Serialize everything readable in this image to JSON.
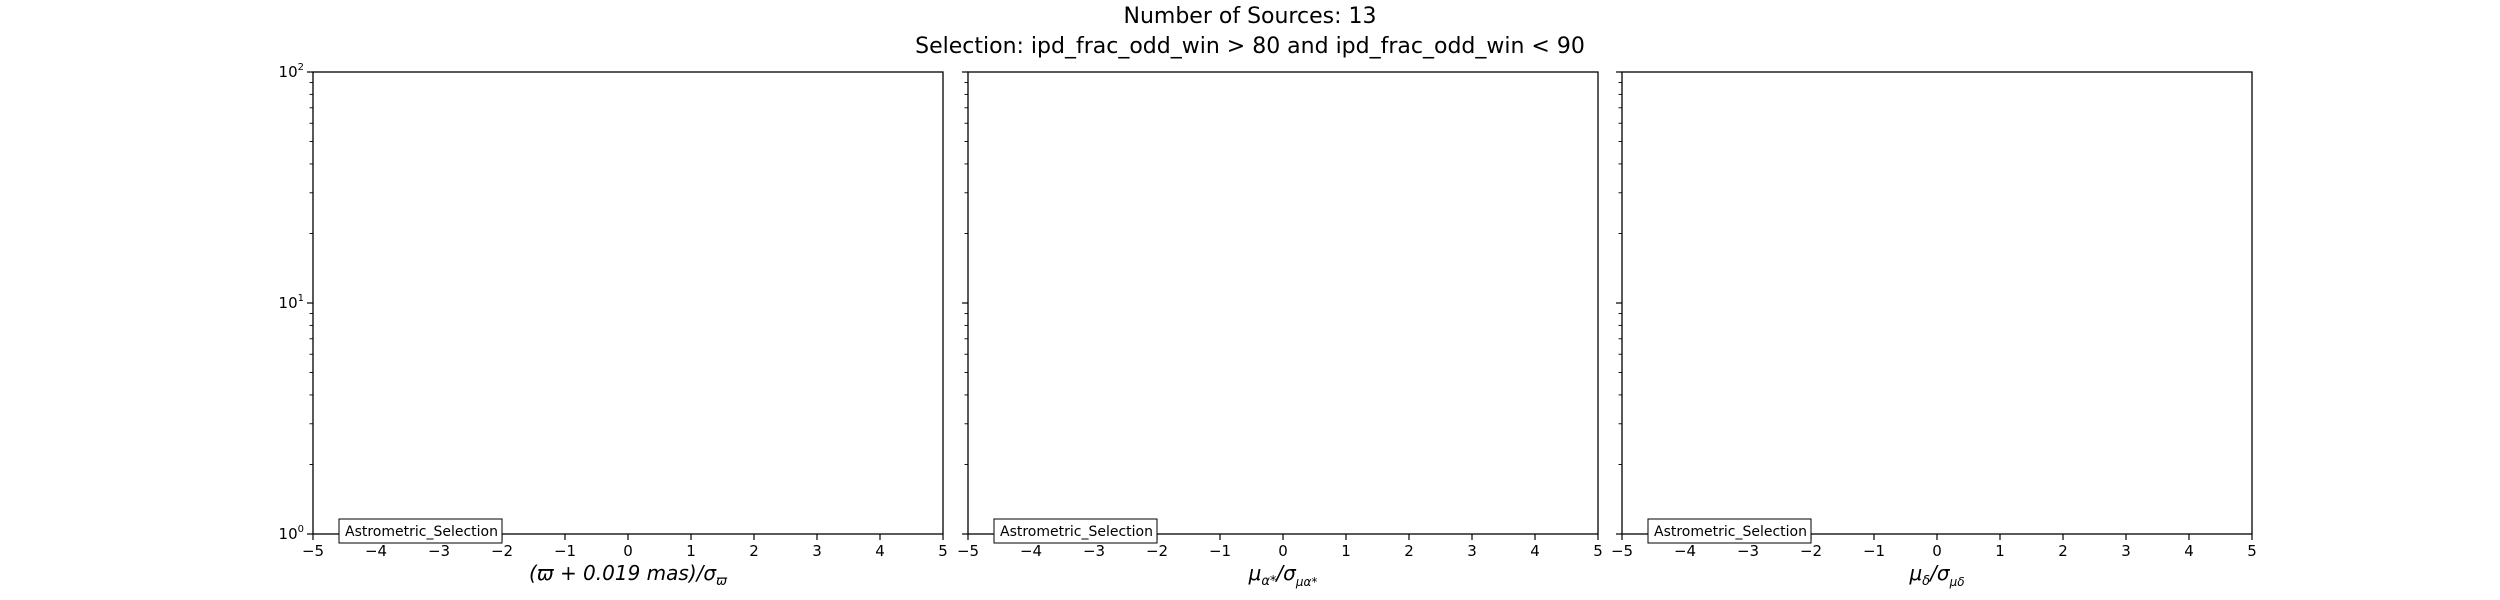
{
  "figure": {
    "title": "Number of Sources: 13",
    "subtitle": "Selection: ipd_frac_odd_win > 80 and ipd_frac_odd_win < 90"
  },
  "chart_data": [
    {
      "type": "histogram",
      "xlabel": "(ϖ + 0.019 mas)/σϖ",
      "xlabel_parts": {
        "main": "(ϖ + 0.019 ",
        "unit": "mas",
        "tail": ")/σ",
        "sub": "ϖ"
      },
      "ylabel": "",
      "xlim": [
        -5,
        5
      ],
      "ylim": [
        1,
        100
      ],
      "yscale": "log",
      "xticks": [
        -5,
        -4,
        -3,
        -2,
        -1,
        0,
        1,
        2,
        3,
        4,
        5
      ],
      "yticks": [
        {
          "base": "10",
          "exp": "0",
          "value": 1
        },
        {
          "base": "10",
          "exp": "1",
          "value": 10
        },
        {
          "base": "10",
          "exp": "2",
          "value": 100
        }
      ],
      "show_yticklabels": true,
      "legend": {
        "label": "Astrometric_Selection",
        "placement": "lower-left"
      },
      "series": [
        {
          "name": "Astrometric_Selection",
          "values": []
        }
      ]
    },
    {
      "type": "histogram",
      "xlabel": "μα*/σμα*",
      "xlabel_parts": {
        "main": "μ",
        "sub1": "α*",
        "tail": "/σ",
        "sub": "μα*"
      },
      "ylabel": "",
      "xlim": [
        -5,
        5
      ],
      "ylim": [
        1,
        100
      ],
      "yscale": "log",
      "xticks": [
        -5,
        -4,
        -3,
        -2,
        -1,
        0,
        1,
        2,
        3,
        4,
        5
      ],
      "yticks": [
        {
          "base": "10",
          "exp": "0",
          "value": 1
        },
        {
          "base": "10",
          "exp": "1",
          "value": 10
        },
        {
          "base": "10",
          "exp": "2",
          "value": 100
        }
      ],
      "show_yticklabels": false,
      "legend": {
        "label": "Astrometric_Selection",
        "placement": "lower-left"
      },
      "series": [
        {
          "name": "Astrometric_Selection",
          "values": []
        }
      ]
    },
    {
      "type": "histogram",
      "xlabel": "μδ/σμδ",
      "xlabel_parts": {
        "main": "μ",
        "sub1": "δ",
        "tail": "/σ",
        "sub": "μδ"
      },
      "ylabel": "",
      "xlim": [
        -5,
        5
      ],
      "ylim": [
        1,
        100
      ],
      "yscale": "log",
      "xticks": [
        -5,
        -4,
        -3,
        -2,
        -1,
        0,
        1,
        2,
        3,
        4,
        5
      ],
      "yticks": [
        {
          "base": "10",
          "exp": "0",
          "value": 1
        },
        {
          "base": "10",
          "exp": "1",
          "value": 10
        },
        {
          "base": "10",
          "exp": "2",
          "value": 100
        }
      ],
      "show_yticklabels": false,
      "legend": {
        "label": "Astrometric_Selection",
        "placement": "lower-left"
      },
      "series": [
        {
          "name": "Astrometric_Selection",
          "values": []
        }
      ]
    }
  ]
}
